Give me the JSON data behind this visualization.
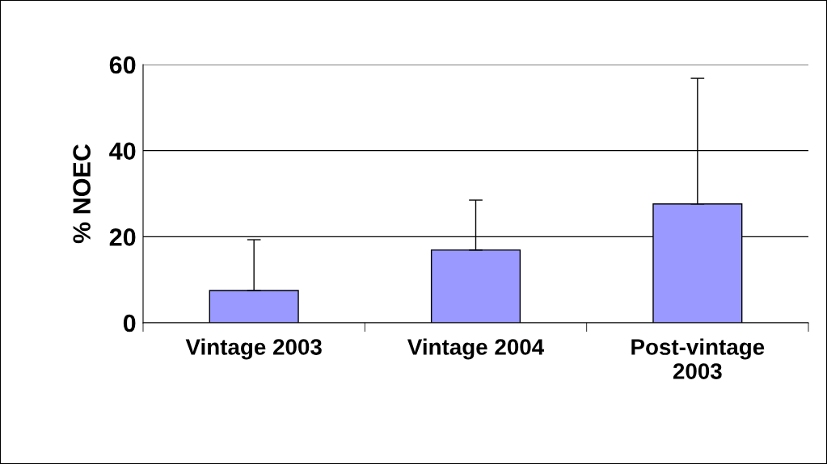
{
  "chart_data": {
    "type": "bar",
    "ylabel": "% NOEC",
    "categories": [
      "Vintage 2003",
      "Vintage 2004",
      "Post-vintage\n2003"
    ],
    "values": [
      7.5,
      16.9,
      27.6
    ],
    "errors": [
      [
        7.5,
        19.3
      ],
      [
        16.9,
        28.5
      ],
      [
        27.6,
        56.8
      ]
    ],
    "color": "#9999ff",
    "ylim": [
      0,
      60
    ],
    "yticks": [
      0,
      20,
      40,
      60
    ],
    "grid": "y"
  }
}
